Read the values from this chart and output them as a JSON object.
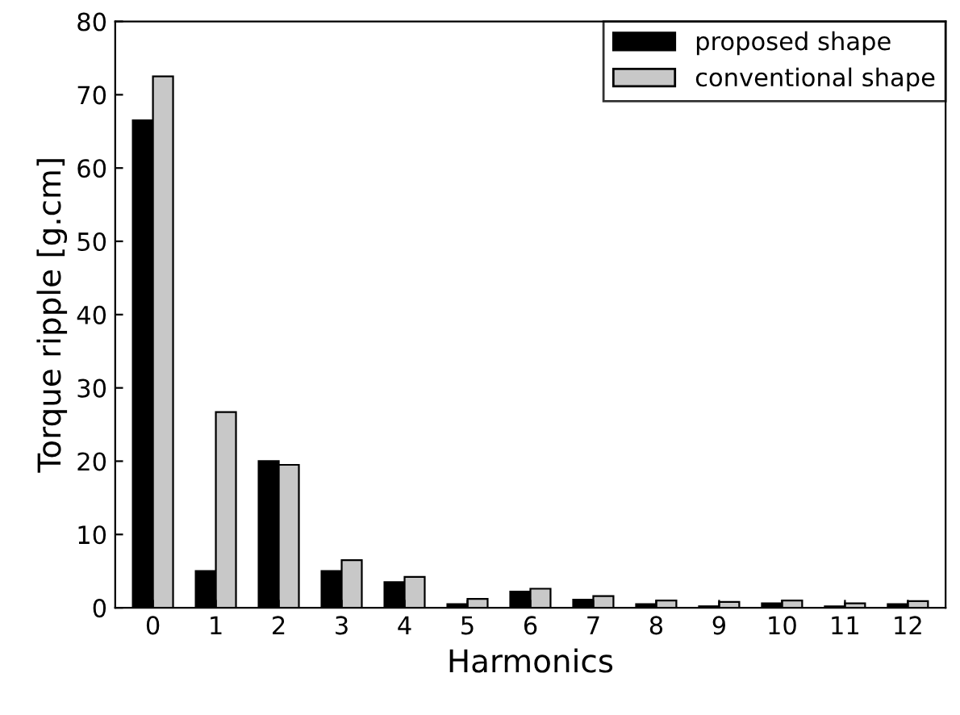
{
  "chart_data": {
    "type": "bar",
    "xlabel": "Harmonics",
    "ylabel": "Torque ripple [g.cm]",
    "categories": [
      "0",
      "1",
      "2",
      "3",
      "4",
      "5",
      "6",
      "7",
      "8",
      "9",
      "10",
      "11",
      "12"
    ],
    "series": [
      {
        "name": "proposed shape",
        "color": "#000000",
        "values": [
          66.5,
          5,
          20,
          5,
          3.5,
          0.5,
          2.2,
          1.1,
          0.5,
          0.2,
          0.6,
          0.2,
          0.5
        ]
      },
      {
        "name": "conventional shape",
        "color": "#c8c8c8",
        "values": [
          72.5,
          26.7,
          19.5,
          6.5,
          4.2,
          1.2,
          2.6,
          1.6,
          1.0,
          0.8,
          1.0,
          0.6,
          0.9
        ]
      }
    ],
    "ylim": [
      0,
      80
    ],
    "yticks": [
      0,
      10,
      20,
      30,
      40,
      50,
      60,
      70,
      80
    ],
    "grid": false,
    "legend": "top right"
  }
}
